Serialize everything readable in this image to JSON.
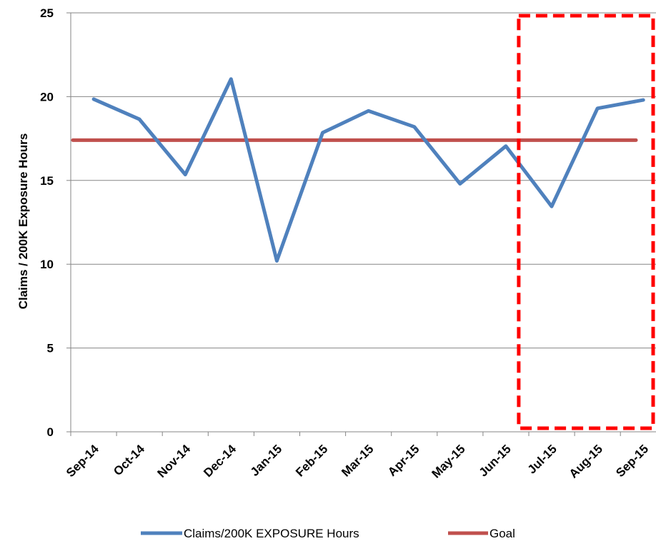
{
  "chart_data": {
    "type": "line",
    "categories": [
      "Sep-14",
      "Oct-14",
      "Nov-14",
      "Dec-14",
      "Jan-15",
      "Feb-15",
      "Mar-15",
      "Apr-15",
      "May-15",
      "Jun-15",
      "Jul-15",
      "Aug-15",
      "Sep-15"
    ],
    "series": [
      {
        "name": "Claims/200K EXPOSURE Hours",
        "color": "#4f81bd",
        "values": [
          19.85,
          18.65,
          15.35,
          21.05,
          10.2,
          17.85,
          19.15,
          18.2,
          14.8,
          17.05,
          13.45,
          19.3,
          19.8
        ]
      },
      {
        "name": "Goal",
        "color": "#c0504d",
        "values": [
          17.4,
          17.4,
          17.4,
          17.4,
          17.4,
          17.4,
          17.4,
          17.4,
          17.4,
          17.4,
          17.4,
          17.4,
          17.4
        ]
      }
    ],
    "title": "",
    "xlabel": "",
    "ylabel": "Claims / 200K Exposure Hours",
    "ylim": [
      0,
      25
    ],
    "yticks": [
      "0",
      "5",
      "10",
      "15",
      "20",
      "25"
    ],
    "grid": true,
    "legend_position": "bottom",
    "highlight_box": {
      "color": "#ff0000",
      "style": "dashed",
      "from": "between Jun-15 and Jul-15",
      "to": "past Sep-15"
    }
  }
}
